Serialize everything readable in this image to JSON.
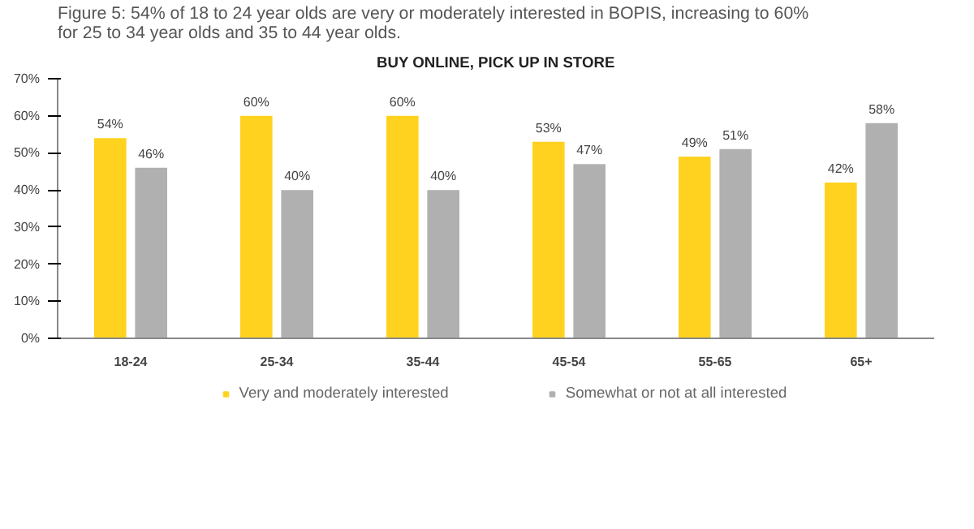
{
  "chart_data": {
    "type": "bar",
    "title": "Figure 5: 54% of 18 to 24 year olds are very or moderately interested in BOPIS, increasing to 60% for 25 to 34 year olds and 35 to 44 year olds.",
    "subtitle": "BUY ONLINE, PICK UP IN STORE",
    "categories": [
      "18-24",
      "25-34",
      "35-44",
      "45-54",
      "55-65",
      "65+"
    ],
    "series": [
      {
        "name": "Very and moderately interested",
        "color": "#ffd21f",
        "values": [
          54,
          60,
          60,
          53,
          49,
          42
        ],
        "value_labels": [
          "54%",
          "60%",
          "60%",
          "53%",
          "49%",
          "42%"
        ]
      },
      {
        "name": "Somewhat or not at all interested",
        "color": "#b0b0b0",
        "values": [
          46,
          40,
          40,
          47,
          51,
          58
        ],
        "value_labels": [
          "46%",
          "40%",
          "40%",
          "47%",
          "51%",
          "58%"
        ]
      }
    ],
    "ylim": [
      0,
      70
    ],
    "yticks": [
      {
        "value": 0,
        "label": "0%"
      },
      {
        "value": 10,
        "label": "10%"
      },
      {
        "value": 20,
        "label": "20%"
      },
      {
        "value": 30,
        "label": "30%"
      },
      {
        "value": 40,
        "label": "40%"
      },
      {
        "value": 50,
        "label": "50%"
      },
      {
        "value": 60,
        "label": "60%"
      },
      {
        "value": 70,
        "label": "70%"
      }
    ],
    "grid": false,
    "legend": "bottom"
  }
}
